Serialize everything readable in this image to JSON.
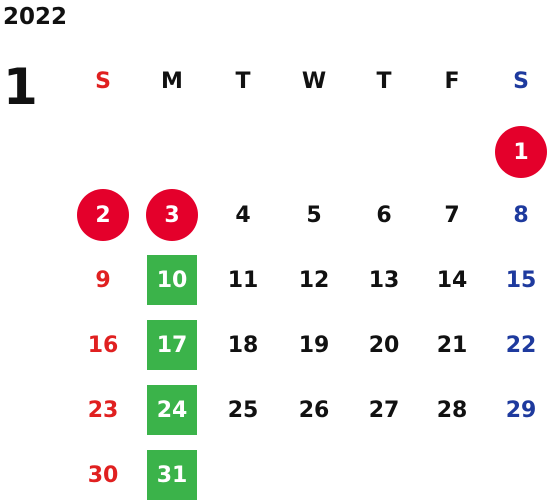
{
  "year": "2022",
  "month": "1",
  "weekdays": [
    "S",
    "M",
    "T",
    "W",
    "T",
    "F",
    "S"
  ],
  "colors": {
    "sunday": "#e02020",
    "saturday": "#1e3a9e",
    "holiday_circle": "#e4002b",
    "closed_box": "#3bb34a"
  },
  "weeks": [
    [
      null,
      null,
      null,
      null,
      null,
      null,
      {
        "day": "1",
        "mark": "holiday"
      }
    ],
    [
      {
        "day": "2",
        "mark": "holiday"
      },
      {
        "day": "3",
        "mark": "holiday"
      },
      {
        "day": "4"
      },
      {
        "day": "5"
      },
      {
        "day": "6"
      },
      {
        "day": "7"
      },
      {
        "day": "8"
      }
    ],
    [
      {
        "day": "9"
      },
      {
        "day": "10",
        "mark": "green"
      },
      {
        "day": "11"
      },
      {
        "day": "12"
      },
      {
        "day": "13"
      },
      {
        "day": "14"
      },
      {
        "day": "15"
      }
    ],
    [
      {
        "day": "16"
      },
      {
        "day": "17",
        "mark": "green"
      },
      {
        "day": "18"
      },
      {
        "day": "19"
      },
      {
        "day": "20"
      },
      {
        "day": "21"
      },
      {
        "day": "22"
      }
    ],
    [
      {
        "day": "23"
      },
      {
        "day": "24",
        "mark": "green"
      },
      {
        "day": "25"
      },
      {
        "day": "26"
      },
      {
        "day": "27"
      },
      {
        "day": "28"
      },
      {
        "day": "29"
      }
    ],
    [
      {
        "day": "30"
      },
      {
        "day": "31",
        "mark": "green"
      },
      null,
      null,
      null,
      null,
      null
    ]
  ]
}
